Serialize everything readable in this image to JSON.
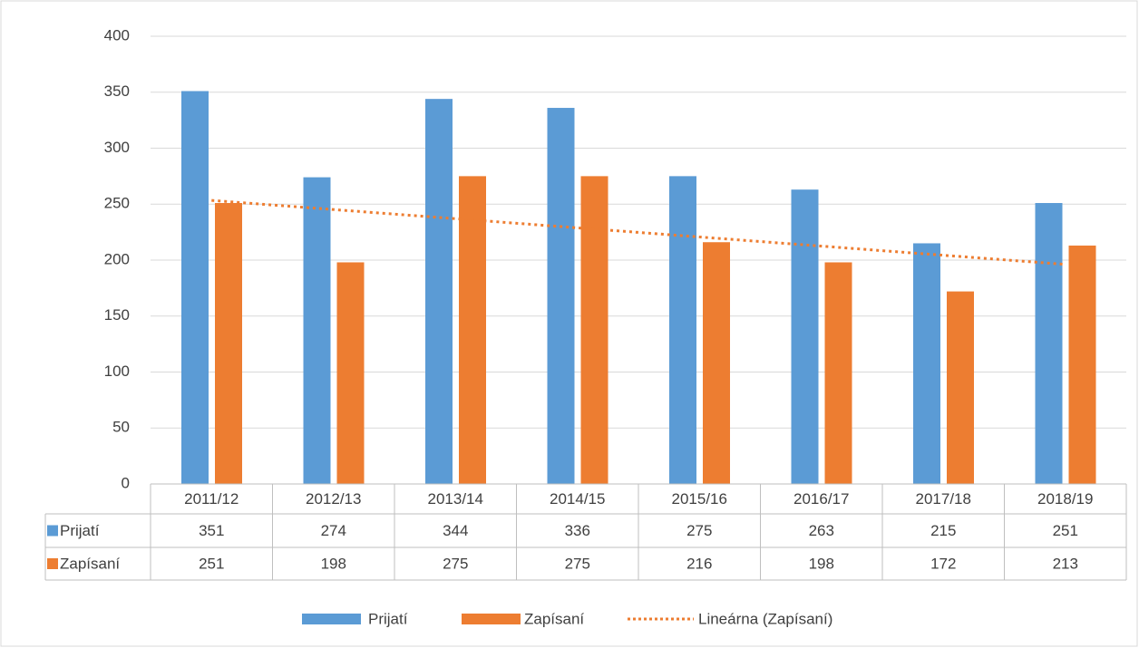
{
  "chart_data": {
    "type": "bar",
    "categories": [
      "2011/12",
      "2012/13",
      "2013/14",
      "2014/15",
      "2015/16",
      "2016/17",
      "2017/18",
      "2018/19"
    ],
    "series": [
      {
        "name": "Prijatí",
        "color": "#5b9bd5",
        "values": [
          351,
          274,
          344,
          336,
          275,
          263,
          215,
          251
        ]
      },
      {
        "name": "Zapísaní",
        "color": "#ed7d31",
        "values": [
          251,
          198,
          275,
          275,
          216,
          198,
          172,
          213
        ]
      }
    ],
    "trendline": {
      "name": "Lineárna (Zapísaní)",
      "series": 1,
      "kind": "linear",
      "color": "#ed7d31"
    },
    "ylim": [
      0,
      400
    ],
    "yticks": [
      0,
      50,
      100,
      150,
      200,
      250,
      300,
      350,
      400
    ],
    "grid": true,
    "data_table": true,
    "legend": "bottom"
  }
}
